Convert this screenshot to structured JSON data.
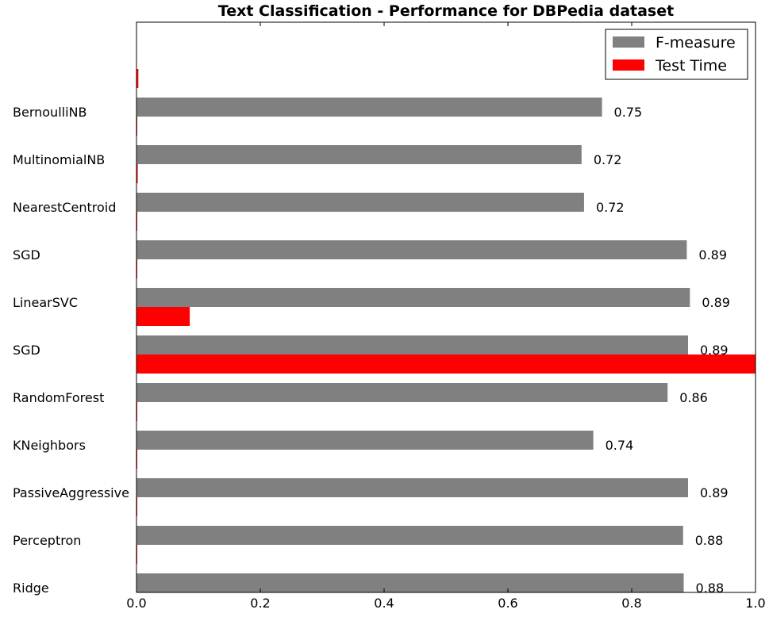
{
  "chart_data": {
    "type": "bar",
    "orientation": "horizontal",
    "title": "Text Classification - Performance for DBPedia dataset",
    "xlabel": "",
    "ylabel": "",
    "xlim": [
      0,
      1.0
    ],
    "x_ticks": [
      "0.0",
      "0.2",
      "0.4",
      "0.6",
      "0.8",
      "1.0"
    ],
    "grid": false,
    "legend_position": "top-right",
    "categories": [
      "BernoulliNB",
      "MultinomialNB",
      "NearestCentroid",
      "SGD",
      "LinearSVC",
      "SGD",
      "RandomForest",
      "KNeighbors",
      "PassiveAggressive",
      "Perceptron",
      "Ridge"
    ],
    "series": [
      {
        "name": "F-measure",
        "color": "#808080",
        "values": [
          0.752,
          0.719,
          0.723,
          0.889,
          0.894,
          0.891,
          0.858,
          0.738,
          0.891,
          0.883,
          0.884
        ],
        "value_labels": [
          "0.75",
          "0.72",
          "0.72",
          "0.89",
          "0.89",
          "0.89",
          "0.86",
          "0.74",
          "0.89",
          "0.88",
          "0.88"
        ]
      },
      {
        "name": "Test Time",
        "color": "#ff0000",
        "values": [
          0.003,
          0.001,
          0.002,
          0.001,
          0.001,
          0.086,
          1.0,
          0.001,
          0.001,
          0.001,
          0.001
        ]
      }
    ]
  }
}
